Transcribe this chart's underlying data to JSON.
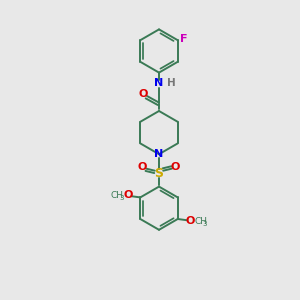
{
  "background_color": "#e8e8e8",
  "bond_color": "#3a7a55",
  "atom_colors": {
    "N": "#0000ee",
    "O": "#dd0000",
    "S": "#ccaa00",
    "F": "#cc00bb",
    "H": "#777777",
    "C": "#3a7a55"
  },
  "lw": 1.4,
  "fs": 7.5,
  "fig_width": 3.0,
  "fig_height": 3.0,
  "dpi": 100,
  "xlim": [
    0,
    10
  ],
  "ylim": [
    0,
    10
  ]
}
